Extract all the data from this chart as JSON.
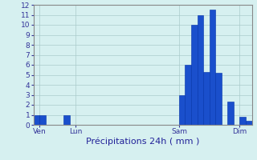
{
  "title": "",
  "xlabel": "Précipitations 24h ( mm )",
  "ylabel": "",
  "ylim": [
    0,
    12
  ],
  "yticks": [
    0,
    1,
    2,
    3,
    4,
    5,
    6,
    7,
    8,
    9,
    10,
    11,
    12
  ],
  "background_color": "#d6f0f0",
  "bar_color": "#1a4fcc",
  "bar_edge_color": "#0030aa",
  "grid_color": "#aacccc",
  "values": [
    1,
    1,
    0,
    0,
    0,
    1,
    0,
    0,
    0,
    0,
    0,
    0,
    0,
    0,
    0,
    0,
    0,
    0,
    0,
    0,
    0,
    0,
    0,
    0,
    3,
    6,
    10,
    11,
    5.3,
    11.5,
    5.2,
    0,
    2.3,
    0,
    0.8,
    0.4
  ],
  "n_bars": 36,
  "day_labels": [
    "Ven",
    "Lun",
    "Sam",
    "Dim"
  ],
  "day_positions": [
    1.0,
    7.0,
    24.0,
    34.0
  ],
  "xlabel_fontsize": 8,
  "tick_fontsize": 6.5,
  "spine_color": "#888888"
}
